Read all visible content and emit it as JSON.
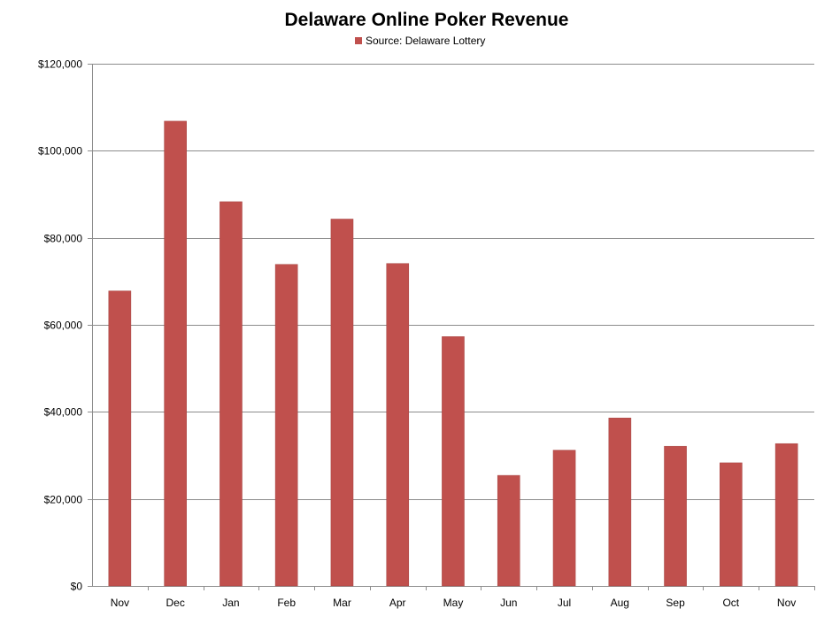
{
  "chart_data": {
    "type": "bar",
    "title": "Delaware Online Poker Revenue",
    "xlabel": "",
    "ylabel": "",
    "categories": [
      "Nov",
      "Dec",
      "Jan",
      "Feb",
      "Mar",
      "Apr",
      "May",
      "Jun",
      "Jul",
      "Aug",
      "Sep",
      "Oct",
      "Nov"
    ],
    "series": [
      {
        "name": "Source: Delaware Lottery",
        "color": "#C0504D",
        "values": [
          67800,
          106800,
          88300,
          73900,
          84300,
          74100,
          57300,
          25400,
          31200,
          38600,
          32100,
          28300,
          32700
        ]
      }
    ],
    "ylim": [
      0,
      120000
    ],
    "yticks": [
      0,
      20000,
      40000,
      60000,
      80000,
      100000,
      120000
    ],
    "ytick_labels": [
      "$0",
      "$20,000",
      "$40,000",
      "$60,000",
      "$80,000",
      "$100,000",
      "$120,000"
    ],
    "grid": true,
    "legend_position": "top-center"
  }
}
